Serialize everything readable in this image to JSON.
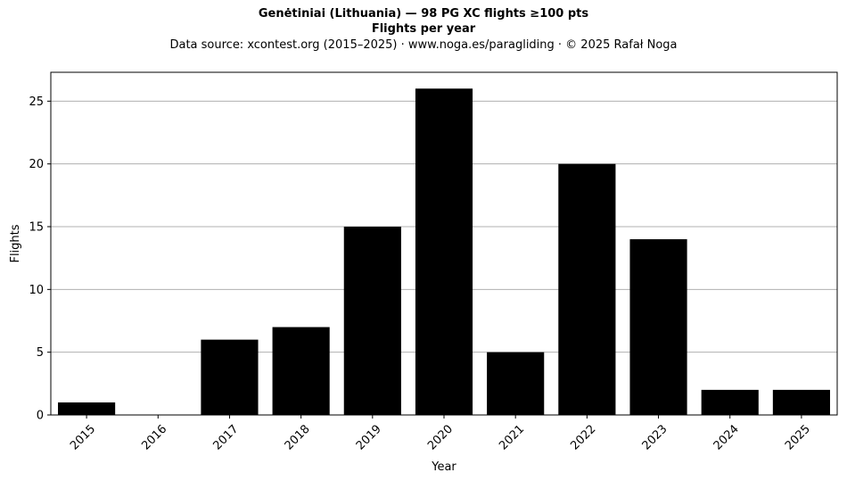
{
  "header": {
    "title": "Genėtiniai (Lithuania)  —  98 PG XC flights ≥100 pts",
    "subtitle": "Flights per year",
    "source": "Data source: xcontest.org (2015–2025)  ·  www.noga.es/paragliding  ·  © 2025 Rafał Noga"
  },
  "chart_data": {
    "type": "bar",
    "title": "Genėtiniai (Lithuania)  —  98 PG XC flights ≥100 pts",
    "subtitle": "Flights per year",
    "xlabel": "Year",
    "ylabel": "Flights",
    "categories": [
      "2015",
      "2016",
      "2017",
      "2018",
      "2019",
      "2020",
      "2021",
      "2022",
      "2023",
      "2024",
      "2025"
    ],
    "values": [
      1,
      0,
      6,
      7,
      15,
      26,
      5,
      20,
      14,
      2,
      2
    ],
    "ylim": [
      0,
      27.3
    ],
    "yticks": [
      0,
      5,
      10,
      15,
      20,
      25
    ],
    "grid": "horizontal",
    "bar_color": "#000000",
    "grid_color": "#b0b0b0",
    "x_tick_rotation": "45 degrees"
  }
}
